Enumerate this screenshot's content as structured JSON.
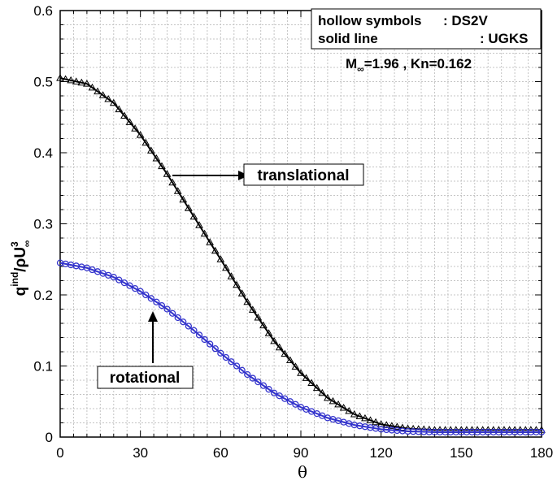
{
  "chart_data": {
    "type": "line",
    "xlabel": "θ",
    "ylabel": {
      "main": "q",
      "sup": "ind",
      "slash": "/",
      "rho": "ρ",
      "u": "U",
      "u_sup": "3",
      "u_sub": "∞"
    },
    "xlim": [
      0,
      180
    ],
    "ylim": [
      0,
      0.6
    ],
    "xticks": [
      "0",
      "30",
      "60",
      "90",
      "120",
      "150",
      "180"
    ],
    "yticks": [
      "0",
      "0.1",
      "0.2",
      "0.3",
      "0.4",
      "0.5",
      "0.6"
    ],
    "grid": true,
    "legend": {
      "line1_label": "hollow symbols",
      "line1_value": ": DS2V",
      "line2_label": "solid line",
      "line2_value": ": UGKS",
      "cond_m": "M",
      "cond_m_sub": "∞",
      "cond_rest": "=1.96 , Kn=0.162"
    },
    "annotations": {
      "translational": "translational",
      "rotational": "rotational"
    },
    "series": [
      {
        "color": "#000000",
        "marker": "triangle",
        "x": [
          0,
          10,
          20,
          30,
          40,
          50,
          60,
          70,
          80,
          90,
          100,
          110,
          120,
          130,
          140,
          150,
          160,
          170,
          180
        ],
        "values": [
          0.505,
          0.497,
          0.47,
          0.425,
          0.37,
          0.31,
          0.25,
          0.19,
          0.135,
          0.09,
          0.055,
          0.032,
          0.018,
          0.012,
          0.01,
          0.01,
          0.01,
          0.01,
          0.01
        ]
      },
      {
        "color": "#3333cc",
        "marker": "circle",
        "x": [
          0,
          10,
          20,
          30,
          40,
          50,
          60,
          70,
          80,
          90,
          100,
          110,
          120,
          130,
          140,
          150,
          160,
          170,
          180
        ],
        "values": [
          0.245,
          0.238,
          0.225,
          0.205,
          0.18,
          0.15,
          0.118,
          0.088,
          0.062,
          0.042,
          0.027,
          0.017,
          0.011,
          0.008,
          0.007,
          0.007,
          0.007,
          0.007,
          0.007
        ]
      }
    ]
  }
}
